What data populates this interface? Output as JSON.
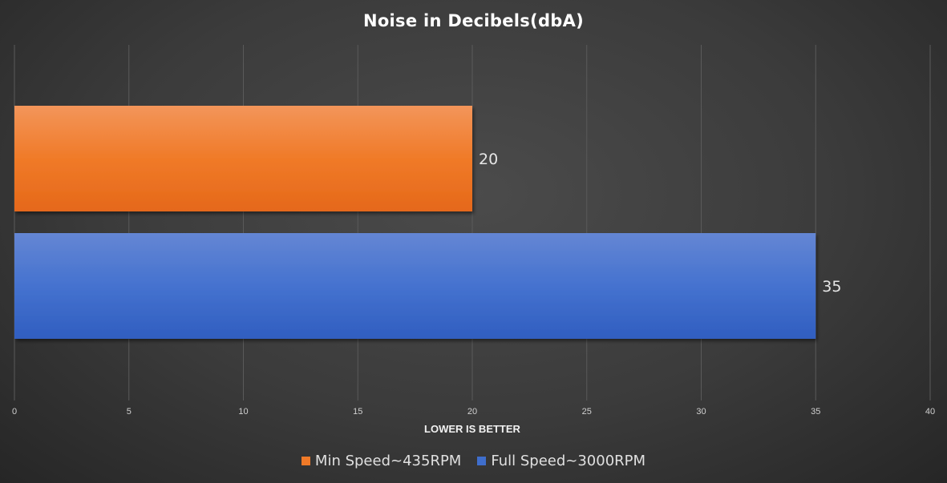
{
  "chart_data": {
    "type": "bar",
    "orientation": "horizontal",
    "title": "Noise in Decibels(dbA)",
    "xlabel": "LOWER IS BETTER",
    "ylabel": "",
    "xlim": [
      0,
      40
    ],
    "x_ticks": [
      0,
      5,
      10,
      15,
      20,
      25,
      30,
      35,
      40
    ],
    "grid": true,
    "legend_position": "bottom",
    "series": [
      {
        "name": "Min Speed~435RPM",
        "value": 20,
        "label": "20",
        "color": "#f07a28"
      },
      {
        "name": "Full Speed~3000RPM",
        "value": 35,
        "label": "35",
        "color": "#3f6ecc"
      }
    ]
  }
}
